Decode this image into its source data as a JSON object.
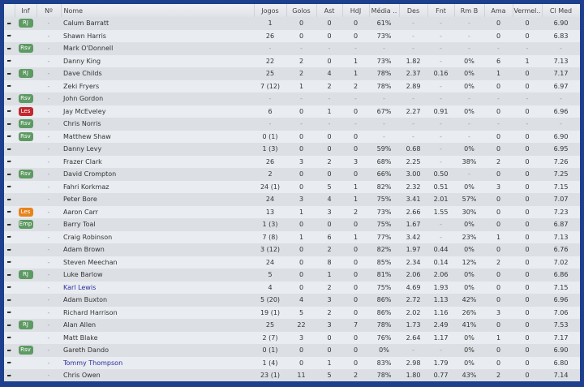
{
  "headers": {
    "inf": "Inf",
    "num": "Nº",
    "name": "Nome",
    "jogos": "Jogos",
    "golos": "Golos",
    "ast": "Ast",
    "hdj": "HdJ",
    "media": "Média ..",
    "des": "Des",
    "fnt": "Fnt",
    "rmb": "Rm B",
    "ama": "Ama",
    "vermel": "Vermel..",
    "clmed": "Cl Med"
  },
  "badge_colors": {
    "RJ": "#5e9a63",
    "Rsv": "#5e9a63",
    "Emp": "#5e9a63",
    "Les": "#c2282f",
    "Les-orange": "#e8841c"
  },
  "rows": [
    {
      "badge": "RJ",
      "num": "-",
      "name": "Calum Barratt",
      "jogos": "1",
      "golos": "0",
      "ast": "0",
      "hdj": "0",
      "media": "61%",
      "des": "-",
      "fnt": "-",
      "rmb": "-",
      "ama": "0",
      "vermel": "0",
      "clmed": "6.90"
    },
    {
      "badge": "",
      "num": "-",
      "name": "Shawn Harris",
      "jogos": "26",
      "golos": "0",
      "ast": "0",
      "hdj": "0",
      "media": "73%",
      "des": "-",
      "fnt": "-",
      "rmb": "-",
      "ama": "0",
      "vermel": "0",
      "clmed": "6.83"
    },
    {
      "badge": "Rsv",
      "num": "-",
      "name": "Mark O'Donnell",
      "jogos": "-",
      "golos": "-",
      "ast": "-",
      "hdj": "-",
      "media": "-",
      "des": "-",
      "fnt": "-",
      "rmb": "-",
      "ama": "-",
      "vermel": "-",
      "clmed": "-"
    },
    {
      "badge": "",
      "num": "-",
      "name": "Danny King",
      "jogos": "22",
      "golos": "2",
      "ast": "0",
      "hdj": "1",
      "media": "73%",
      "des": "1.82",
      "fnt": "-",
      "rmb": "0%",
      "ama": "6",
      "vermel": "1",
      "clmed": "7.13"
    },
    {
      "badge": "RJ",
      "num": "-",
      "name": "Dave Childs",
      "jogos": "25",
      "golos": "2",
      "ast": "4",
      "hdj": "1",
      "media": "78%",
      "des": "2.37",
      "fnt": "0.16",
      "rmb": "0%",
      "ama": "1",
      "vermel": "0",
      "clmed": "7.17"
    },
    {
      "badge": "",
      "num": "-",
      "name": "Zeki Fryers",
      "jogos": "7 (12)",
      "golos": "1",
      "ast": "2",
      "hdj": "2",
      "media": "78%",
      "des": "2.89",
      "fnt": "-",
      "rmb": "0%",
      "ama": "0",
      "vermel": "0",
      "clmed": "6.97"
    },
    {
      "badge": "Rsv",
      "num": "-",
      "name": "John Gordon",
      "jogos": "-",
      "golos": "-",
      "ast": "-",
      "hdj": "-",
      "media": "-",
      "des": "-",
      "fnt": "-",
      "rmb": "-",
      "ama": "-",
      "vermel": "-",
      "clmed": "-"
    },
    {
      "badge": "Les",
      "num": "-",
      "name": "Jay McEveley",
      "jogos": "6",
      "golos": "0",
      "ast": "1",
      "hdj": "0",
      "media": "67%",
      "des": "2.27",
      "fnt": "0.91",
      "rmb": "0%",
      "ama": "0",
      "vermel": "0",
      "clmed": "6.96"
    },
    {
      "badge": "Rsv",
      "num": "-",
      "name": "Chris Norris",
      "jogos": "-",
      "golos": "-",
      "ast": "-",
      "hdj": "-",
      "media": "-",
      "des": "-",
      "fnt": "-",
      "rmb": "-",
      "ama": "-",
      "vermel": "-",
      "clmed": "-"
    },
    {
      "badge": "Rsv",
      "num": "-",
      "name": "Matthew Shaw",
      "jogos": "0 (1)",
      "golos": "0",
      "ast": "0",
      "hdj": "0",
      "media": "-",
      "des": "-",
      "fnt": "-",
      "rmb": "-",
      "ama": "0",
      "vermel": "0",
      "clmed": "6.90"
    },
    {
      "badge": "",
      "num": "-",
      "name": "Danny Levy",
      "jogos": "1 (3)",
      "golos": "0",
      "ast": "0",
      "hdj": "0",
      "media": "59%",
      "des": "0.68",
      "fnt": "-",
      "rmb": "0%",
      "ama": "0",
      "vermel": "0",
      "clmed": "6.95"
    },
    {
      "badge": "",
      "num": "-",
      "name": "Frazer Clark",
      "jogos": "26",
      "golos": "3",
      "ast": "2",
      "hdj": "3",
      "media": "68%",
      "des": "2.25",
      "fnt": "-",
      "rmb": "38%",
      "ama": "2",
      "vermel": "0",
      "clmed": "7.26"
    },
    {
      "badge": "Rsv",
      "num": "-",
      "name": "David Crompton",
      "jogos": "2",
      "golos": "0",
      "ast": "0",
      "hdj": "0",
      "media": "66%",
      "des": "3.00",
      "fnt": "0.50",
      "rmb": "-",
      "ama": "0",
      "vermel": "0",
      "clmed": "7.25"
    },
    {
      "badge": "",
      "num": "-",
      "name": "Fahri Korkmaz",
      "jogos": "24 (1)",
      "golos": "0",
      "ast": "5",
      "hdj": "1",
      "media": "82%",
      "des": "2.32",
      "fnt": "0.51",
      "rmb": "0%",
      "ama": "3",
      "vermel": "0",
      "clmed": "7.15"
    },
    {
      "badge": "",
      "num": "-",
      "name": "Peter Bore",
      "jogos": "24",
      "golos": "3",
      "ast": "4",
      "hdj": "1",
      "media": "75%",
      "des": "3.41",
      "fnt": "2.01",
      "rmb": "57%",
      "ama": "0",
      "vermel": "0",
      "clmed": "7.07"
    },
    {
      "badge": "Les",
      "badge_color": "orange",
      "num": "-",
      "name": "Aaron Carr",
      "jogos": "13",
      "golos": "1",
      "ast": "3",
      "hdj": "2",
      "media": "73%",
      "des": "2.66",
      "fnt": "1.55",
      "rmb": "30%",
      "ama": "0",
      "vermel": "0",
      "clmed": "7.23"
    },
    {
      "badge": "Emp",
      "num": "-",
      "name": "Barry Toal",
      "jogos": "1 (3)",
      "golos": "0",
      "ast": "0",
      "hdj": "0",
      "media": "75%",
      "des": "1.67",
      "fnt": "-",
      "rmb": "0%",
      "ama": "0",
      "vermel": "0",
      "clmed": "6.87"
    },
    {
      "badge": "",
      "num": "-",
      "name": "Craig Robinson",
      "jogos": "7 (8)",
      "golos": "1",
      "ast": "6",
      "hdj": "1",
      "media": "77%",
      "des": "3.42",
      "fnt": "-",
      "rmb": "23%",
      "ama": "1",
      "vermel": "0",
      "clmed": "7.13"
    },
    {
      "badge": "",
      "num": "-",
      "name": "Adam Brown",
      "jogos": "3 (12)",
      "golos": "0",
      "ast": "2",
      "hdj": "0",
      "media": "82%",
      "des": "1.97",
      "fnt": "0.44",
      "rmb": "0%",
      "ama": "0",
      "vermel": "0",
      "clmed": "6.76"
    },
    {
      "badge": "",
      "num": "-",
      "name": "Steven Meechan",
      "jogos": "24",
      "golos": "0",
      "ast": "8",
      "hdj": "0",
      "media": "85%",
      "des": "2.34",
      "fnt": "0.14",
      "rmb": "12%",
      "ama": "2",
      "vermel": "0",
      "clmed": "7.02"
    },
    {
      "badge": "RJ",
      "num": "-",
      "name": "Luke Barlow",
      "jogos": "5",
      "golos": "0",
      "ast": "1",
      "hdj": "0",
      "media": "81%",
      "des": "2.06",
      "fnt": "2.06",
      "rmb": "0%",
      "ama": "0",
      "vermel": "0",
      "clmed": "6.86"
    },
    {
      "badge": "",
      "num": "-",
      "name": "Karl Lewis",
      "link": true,
      "jogos": "4",
      "golos": "0",
      "ast": "2",
      "hdj": "0",
      "media": "75%",
      "des": "4.69",
      "fnt": "1.93",
      "rmb": "0%",
      "ama": "0",
      "vermel": "0",
      "clmed": "7.15"
    },
    {
      "badge": "",
      "num": "-",
      "name": "Adam Buxton",
      "jogos": "5 (20)",
      "golos": "4",
      "ast": "3",
      "hdj": "0",
      "media": "86%",
      "des": "2.72",
      "fnt": "1.13",
      "rmb": "42%",
      "ama": "0",
      "vermel": "0",
      "clmed": "6.96"
    },
    {
      "badge": "",
      "num": "-",
      "name": "Richard Harrison",
      "jogos": "19 (1)",
      "golos": "5",
      "ast": "2",
      "hdj": "0",
      "media": "86%",
      "des": "2.02",
      "fnt": "1.16",
      "rmb": "26%",
      "ama": "3",
      "vermel": "0",
      "clmed": "7.06"
    },
    {
      "badge": "RJ",
      "num": "-",
      "name": "Alan Allen",
      "jogos": "25",
      "golos": "22",
      "ast": "3",
      "hdj": "7",
      "media": "78%",
      "des": "1.73",
      "fnt": "2.49",
      "rmb": "41%",
      "ama": "0",
      "vermel": "0",
      "clmed": "7.53"
    },
    {
      "badge": "",
      "num": "-",
      "name": "Matt Blake",
      "jogos": "2 (7)",
      "golos": "3",
      "ast": "0",
      "hdj": "0",
      "media": "76%",
      "des": "2.64",
      "fnt": "1.17",
      "rmb": "0%",
      "ama": "1",
      "vermel": "0",
      "clmed": "7.17"
    },
    {
      "badge": "Rsv",
      "num": "-",
      "name": "Gareth Dando",
      "jogos": "0 (1)",
      "golos": "0",
      "ast": "0",
      "hdj": "0",
      "media": "0%",
      "des": "-",
      "fnt": "-",
      "rmb": "0%",
      "ama": "0",
      "vermel": "0",
      "clmed": "6.90"
    },
    {
      "badge": "",
      "num": "-",
      "name": "Tommy Thompson",
      "link": true,
      "jogos": "1 (4)",
      "golos": "0",
      "ast": "1",
      "hdj": "0",
      "media": "83%",
      "des": "2.98",
      "fnt": "1.79",
      "rmb": "0%",
      "ama": "0",
      "vermel": "0",
      "clmed": "6.80"
    },
    {
      "badge": "",
      "num": "-",
      "name": "Chris Owen",
      "jogos": "23 (1)",
      "golos": "11",
      "ast": "5",
      "hdj": "2",
      "media": "78%",
      "des": "1.80",
      "fnt": "0.77",
      "rmb": "43%",
      "ama": "2",
      "vermel": "0",
      "clmed": "7.14"
    }
  ]
}
